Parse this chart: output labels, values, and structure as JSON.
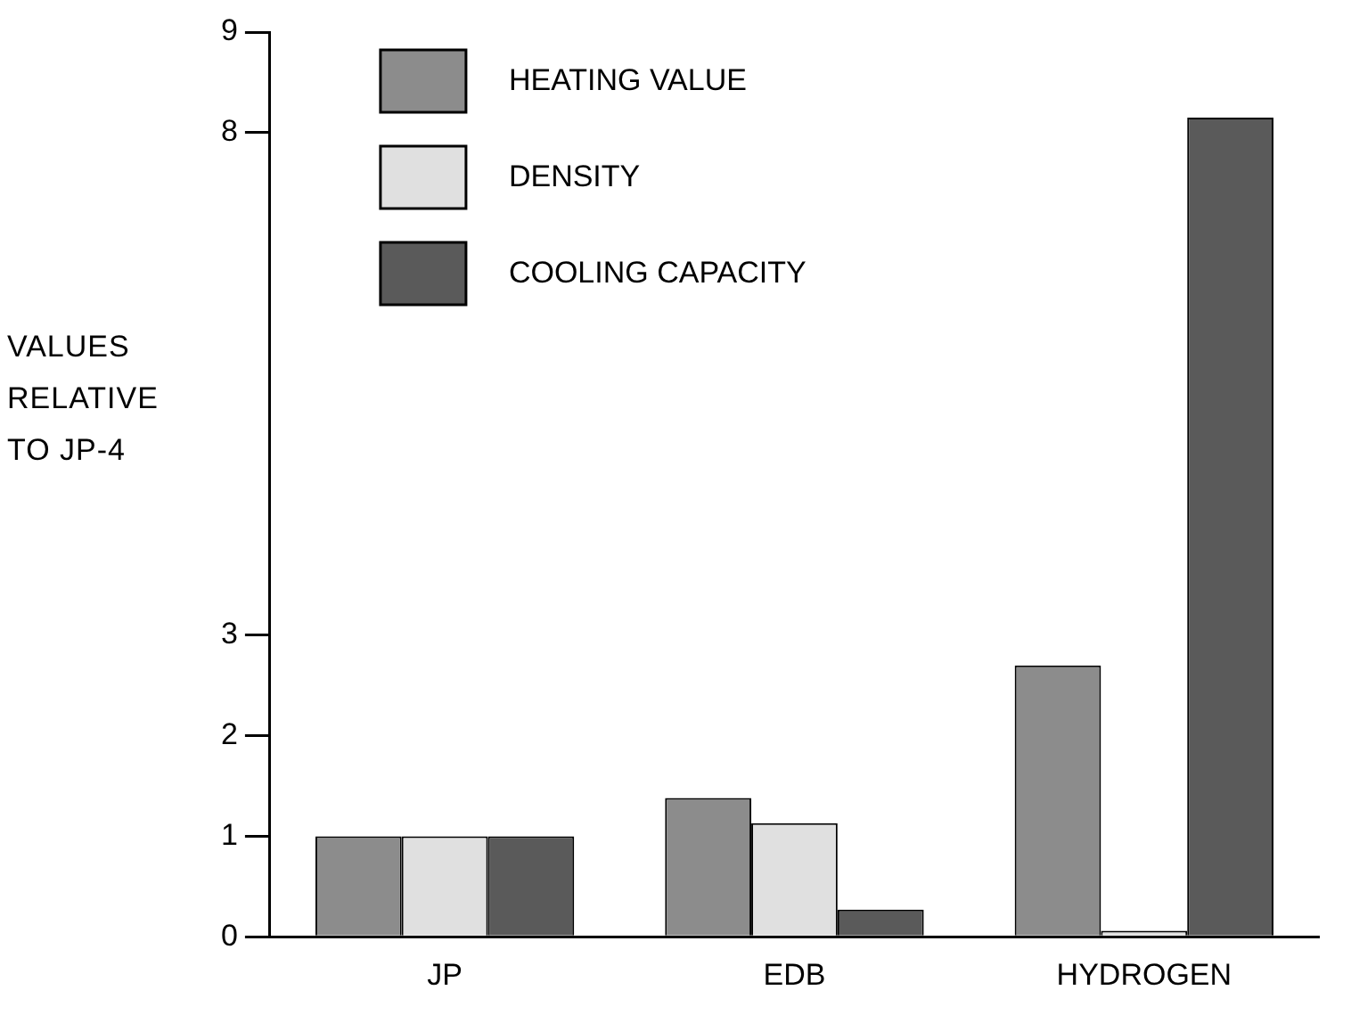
{
  "chart_data": {
    "type": "bar",
    "ylabel": "VALUES RELATIVE TO JP-4",
    "categories": [
      "JP",
      "EDB",
      "HYDROGEN"
    ],
    "series": [
      {
        "name": "HEATING VALUE",
        "color": "#8c8c8c",
        "values": [
          1,
          1.38,
          2.7
        ]
      },
      {
        "name": "DENSITY",
        "color": "#e0e0e0",
        "values": [
          1,
          1.13,
          0.06
        ]
      },
      {
        "name": "COOLING CAPACITY",
        "color": "#5a5a5a",
        "values": [
          1,
          0.27,
          8.15
        ]
      }
    ],
    "ylim": [
      0,
      9
    ],
    "yticks": [
      0,
      1,
      2,
      3,
      8,
      9
    ],
    "grid": false,
    "legend": "top left"
  }
}
